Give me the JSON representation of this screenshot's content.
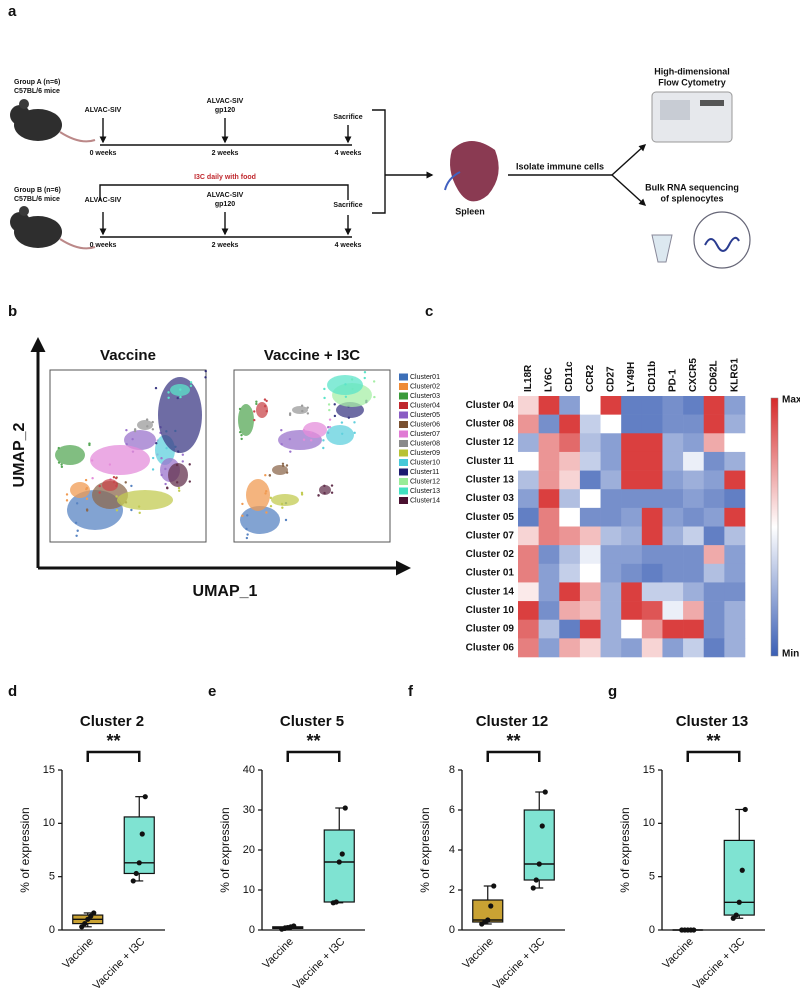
{
  "figure": {
    "panel_labels": [
      "a",
      "b",
      "c",
      "d",
      "e",
      "f",
      "g"
    ],
    "group_a": {
      "name": "Group A (n=6)",
      "strain": "C57BL/6 mice",
      "events": [
        {
          "label": [
            "ALVAC-SIV"
          ],
          "time": "0 weeks"
        },
        {
          "label": [
            "ALVAC-SIV",
            "gp120"
          ],
          "time": "2 weeks"
        },
        {
          "label": [
            "Sacrifice"
          ],
          "time": "4 weeks"
        }
      ]
    },
    "group_b": {
      "name": "Group B (n=6)",
      "strain": "C57BL/6 mice",
      "treatment": "I3C daily with food",
      "events": [
        {
          "label": [
            "ALVAC-SIV"
          ],
          "time": "0 weeks"
        },
        {
          "label": [
            "ALVAC-SIV",
            "gp120"
          ],
          "time": "2 weeks"
        },
        {
          "label": [
            "Sacrifice"
          ],
          "time": "4 weeks"
        }
      ]
    },
    "organ": "Spleen",
    "step": "Isolate immune cells",
    "outputs": [
      [
        "High-dimensional",
        "Flow Cytometry"
      ],
      [
        "Bulk RNA sequencing",
        "of splenocytes"
      ]
    ]
  },
  "chart_data": [
    {
      "type": "scatter",
      "panels": [
        "Vaccine",
        "Vaccine + I3C"
      ],
      "xlabel": "UMAP_1",
      "ylabel": "UMAP_2",
      "series": [
        {
          "name": "Cluster01",
          "color": "#3c6fb8"
        },
        {
          "name": "Cluster02",
          "color": "#ee8a36"
        },
        {
          "name": "Cluster03",
          "color": "#3a9a3a"
        },
        {
          "name": "Cluster04",
          "color": "#c0282e"
        },
        {
          "name": "Cluster05",
          "color": "#8a5cc4"
        },
        {
          "name": "Cluster06",
          "color": "#7a5030"
        },
        {
          "name": "Cluster07",
          "color": "#e07ad4"
        },
        {
          "name": "Cluster08",
          "color": "#8a8a8a"
        },
        {
          "name": "Cluster09",
          "color": "#b8c234"
        },
        {
          "name": "Cluster10",
          "color": "#46c8d8"
        },
        {
          "name": "Cluster11",
          "color": "#1c1a70"
        },
        {
          "name": "Cluster12",
          "color": "#98ec98"
        },
        {
          "name": "Cluster13",
          "color": "#40e0c0"
        },
        {
          "name": "Cluster14",
          "color": "#4a1030"
        }
      ]
    },
    {
      "type": "heatmap",
      "columns": [
        "IL18R",
        "LY6C",
        "CD11c",
        "CCR2",
        "CD27",
        "LY49H",
        "CD11b",
        "PD-1",
        "CXCR5",
        "CD62L",
        "KLRG1"
      ],
      "rows": [
        "Cluster 04",
        "Cluster 08",
        "Cluster 12",
        "Cluster 11",
        "Cluster 13",
        "Cluster 03",
        "Cluster 05",
        "Cluster 07",
        "Cluster 02",
        "Cluster 01",
        "Cluster 14",
        "Cluster 10",
        "Cluster 09",
        "Cluster 06"
      ],
      "values": [
        [
          0.2,
          0.9,
          -0.6,
          0.0,
          0.9,
          -0.8,
          -0.8,
          -0.7,
          -0.8,
          0.9,
          -0.6
        ],
        [
          0.5,
          -0.7,
          0.9,
          -0.3,
          0.0,
          -0.8,
          -0.8,
          -0.7,
          -0.7,
          0.9,
          -0.5
        ],
        [
          -0.5,
          0.5,
          0.7,
          -0.4,
          -0.6,
          0.9,
          0.9,
          -0.5,
          -0.6,
          0.4,
          0.0
        ],
        [
          0.0,
          0.5,
          0.3,
          -0.3,
          -0.6,
          0.9,
          0.9,
          -0.5,
          -0.1,
          -0.7,
          -0.5
        ],
        [
          -0.4,
          0.5,
          0.2,
          -0.8,
          -0.5,
          0.9,
          0.9,
          -0.6,
          -0.5,
          -0.6,
          0.9
        ],
        [
          -0.6,
          0.9,
          -0.4,
          0.0,
          -0.7,
          -0.7,
          -0.7,
          -0.7,
          -0.6,
          -0.7,
          -0.8
        ],
        [
          -0.8,
          0.6,
          0.0,
          -0.7,
          -0.7,
          -0.6,
          0.9,
          -0.6,
          -0.7,
          -0.6,
          0.9
        ],
        [
          0.2,
          0.6,
          0.5,
          0.3,
          -0.4,
          -0.5,
          0.9,
          -0.5,
          -0.3,
          -0.8,
          -0.4
        ],
        [
          0.6,
          -0.7,
          -0.4,
          -0.1,
          -0.6,
          -0.6,
          -0.7,
          -0.7,
          -0.7,
          0.4,
          -0.6
        ],
        [
          0.6,
          -0.6,
          -0.3,
          0.0,
          -0.6,
          -0.7,
          -0.8,
          -0.7,
          -0.7,
          -0.4,
          -0.6
        ],
        [
          0.1,
          -0.6,
          0.9,
          0.4,
          -0.5,
          0.9,
          -0.3,
          -0.3,
          -0.5,
          -0.7,
          -0.7
        ],
        [
          0.9,
          -0.7,
          0.4,
          0.3,
          -0.5,
          0.9,
          0.8,
          -0.1,
          0.4,
          -0.7,
          -0.5
        ],
        [
          0.7,
          -0.4,
          -0.8,
          0.9,
          -0.5,
          0.0,
          0.5,
          0.9,
          0.9,
          -0.7,
          -0.5
        ],
        [
          0.6,
          -0.6,
          0.4,
          0.2,
          -0.5,
          -0.6,
          0.2,
          -0.6,
          -0.3,
          -0.8,
          -0.5
        ]
      ],
      "zlim": [
        -1,
        1
      ],
      "colors": [
        "#3b5fb5",
        "#ffffff",
        "#d62a2a"
      ],
      "colorbar_labels": {
        "max": "Max",
        "min": "Min"
      }
    },
    {
      "type": "box",
      "title": "Cluster 2",
      "ylabel": "% of expression",
      "significance": "**",
      "categories": [
        "Vaccine",
        "Vaccine + I3C"
      ],
      "colors": [
        "#c9a233",
        "#7fe3d2"
      ],
      "ylim": [
        0,
        15
      ],
      "yticks": [
        0,
        5,
        10,
        15
      ],
      "boxes": [
        {
          "min": 0.3,
          "q1": 0.6,
          "median": 1.0,
          "q3": 1.4,
          "max": 1.6,
          "points": [
            0.3,
            0.6,
            1.0,
            1.3,
            1.6
          ]
        },
        {
          "min": 4.6,
          "q1": 5.3,
          "median": 6.3,
          "q3": 10.6,
          "max": 12.5,
          "points": [
            4.6,
            5.3,
            6.3,
            9.0,
            12.5
          ]
        }
      ]
    },
    {
      "type": "box",
      "title": "Cluster 5",
      "ylabel": "% of expression",
      "significance": "**",
      "categories": [
        "Vaccine",
        "Vaccine + I3C"
      ],
      "colors": [
        "#c9a233",
        "#7fe3d2"
      ],
      "ylim": [
        0,
        40
      ],
      "yticks": [
        0,
        10,
        20,
        30,
        40
      ],
      "boxes": [
        {
          "min": 0.2,
          "q1": 0.4,
          "median": 0.6,
          "q3": 0.8,
          "max": 1.0,
          "points": [
            0.2,
            0.4,
            0.6,
            0.8,
            1.0
          ]
        },
        {
          "min": 6.8,
          "q1": 7.0,
          "median": 17,
          "q3": 25,
          "max": 30.5,
          "points": [
            6.8,
            7.0,
            17,
            19,
            30.5
          ]
        }
      ]
    },
    {
      "type": "box",
      "title": "Cluster 12",
      "ylabel": "% of expression",
      "significance": "**",
      "categories": [
        "Vaccine",
        "Vaccine + I3C"
      ],
      "colors": [
        "#c9a233",
        "#7fe3d2"
      ],
      "ylim": [
        0,
        8
      ],
      "yticks": [
        0,
        2,
        4,
        6,
        8
      ],
      "boxes": [
        {
          "min": 0.3,
          "q1": 0.4,
          "median": 0.5,
          "q3": 1.5,
          "max": 2.2,
          "points": [
            0.3,
            0.4,
            0.5,
            1.2,
            2.2
          ]
        },
        {
          "min": 2.1,
          "q1": 2.5,
          "median": 3.3,
          "q3": 6.0,
          "max": 6.9,
          "points": [
            2.1,
            2.5,
            3.3,
            5.2,
            6.9
          ]
        }
      ]
    },
    {
      "type": "box",
      "title": "Cluster 13",
      "ylabel": "% of expression",
      "significance": "**",
      "categories": [
        "Vaccine",
        "Vaccine + I3C"
      ],
      "colors": [
        "#c9a233",
        "#7fe3d2"
      ],
      "ylim": [
        0,
        15
      ],
      "yticks": [
        0,
        5,
        10,
        15
      ],
      "boxes": [
        {
          "min": 0,
          "q1": 0,
          "median": 0,
          "q3": 0,
          "max": 0,
          "points": [
            0,
            0,
            0,
            0,
            0
          ]
        },
        {
          "min": 1.1,
          "q1": 1.4,
          "median": 2.6,
          "q3": 8.4,
          "max": 11.3,
          "points": [
            1.1,
            1.4,
            2.6,
            5.6,
            11.3
          ]
        }
      ]
    }
  ]
}
